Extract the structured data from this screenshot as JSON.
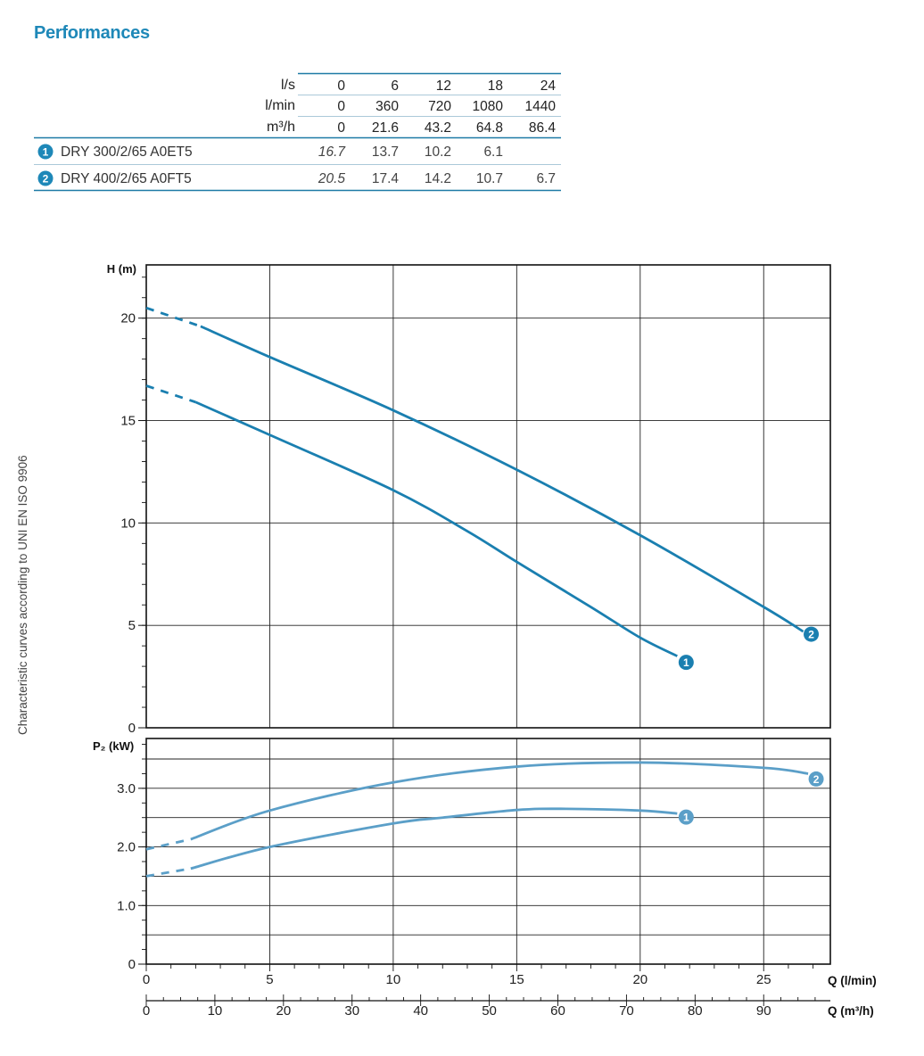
{
  "page": {
    "title": "Performances",
    "side_note": "Characteristic curves according to UNI EN ISO 9906"
  },
  "table": {
    "flow_rows": [
      {
        "unit": "l/s",
        "values": [
          "0",
          "6",
          "12",
          "18",
          "24"
        ]
      },
      {
        "unit": "l/min",
        "values": [
          "0",
          "360",
          "720",
          "1080",
          "1440"
        ]
      },
      {
        "unit": "m³/h",
        "values": [
          "0",
          "21.6",
          "43.2",
          "64.8",
          "86.4"
        ]
      }
    ],
    "models": [
      {
        "badge": "1",
        "name": "DRY 300/2/65 A0ET5",
        "values": [
          "16.7",
          "13.7",
          "10.2",
          "6.1",
          ""
        ]
      },
      {
        "badge": "2",
        "name": "DRY 400/2/65 A0FT5",
        "values": [
          "20.5",
          "17.4",
          "14.2",
          "10.7",
          "6.7"
        ]
      }
    ]
  },
  "chart_data": [
    {
      "type": "line",
      "ylabel": "H (m)",
      "xlim": [
        0,
        27.7
      ],
      "ylim": [
        0,
        22.6
      ],
      "yticks": [
        "0",
        "5",
        "10",
        "15",
        "20"
      ],
      "grid": true,
      "series": [
        {
          "name": "1",
          "x": [
            0,
            2,
            5,
            10,
            13,
            15,
            18,
            20,
            21.5
          ],
          "y": [
            16.7,
            15.9,
            14.3,
            11.6,
            9.6,
            8.1,
            5.9,
            4.4,
            3.5
          ]
        },
        {
          "name": "2",
          "x": [
            0,
            2.2,
            5,
            10,
            15,
            20,
            25,
            26.6
          ],
          "y": [
            20.5,
            19.6,
            18.1,
            15.5,
            12.6,
            9.4,
            5.9,
            4.7
          ]
        }
      ]
    },
    {
      "type": "line",
      "ylabel": "P₂ (kW)",
      "xlabel": "Q (l/min)",
      "xlabel2": "Q (m³/h)",
      "xlim": [
        0,
        27.7
      ],
      "ylim": [
        0,
        3.85
      ],
      "yticks": [
        "0",
        "1.0",
        "2.0",
        "3.0"
      ],
      "xticks": [
        "0",
        "5",
        "10",
        "15",
        "20",
        "25"
      ],
      "xticks2": [
        "0",
        "10",
        "20",
        "30",
        "40",
        "50",
        "60",
        "70",
        "80",
        "90"
      ],
      "grid": true,
      "series": [
        {
          "name": "1",
          "x": [
            0,
            1.8,
            5,
            10,
            12,
            15,
            17,
            20,
            21.5
          ],
          "y": [
            1.5,
            1.63,
            2.0,
            2.4,
            2.5,
            2.63,
            2.65,
            2.62,
            2.57
          ]
        },
        {
          "name": "2",
          "x": [
            0,
            1.8,
            5,
            10,
            15,
            20,
            25,
            26.8
          ],
          "y": [
            1.96,
            2.13,
            2.62,
            3.1,
            3.37,
            3.44,
            3.35,
            3.25
          ]
        }
      ]
    }
  ],
  "colors": {
    "title": "#1e88b8",
    "table_rule": "#1e7aa6",
    "badge": "#1e88b8",
    "h_curve": "#1a7fb0",
    "p_curve": "#5b9fc8",
    "grid": "#222222"
  }
}
